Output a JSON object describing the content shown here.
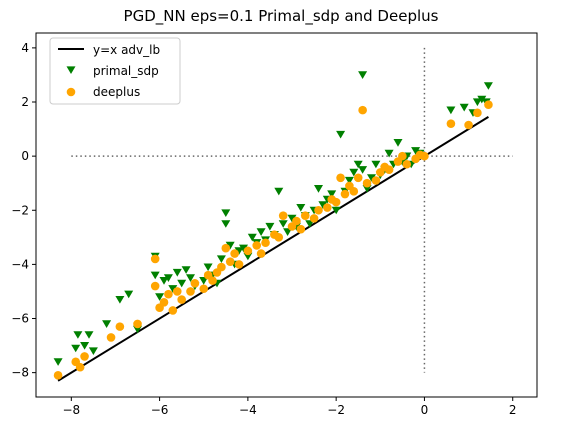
{
  "chart_data": {
    "type": "scatter",
    "title": "PGD_NN eps=0.1 Primal_sdp and Deeplus",
    "xlabel": "",
    "ylabel": "",
    "xlim": [
      -8.8,
      2.55
    ],
    "ylim": [
      -8.9,
      4.55
    ],
    "xticks": [
      -8,
      -6,
      -4,
      -2,
      0,
      2
    ],
    "yticks": [
      -8,
      -6,
      -4,
      -2,
      0,
      2,
      4
    ],
    "xtick_labels": [
      "−8",
      "−6",
      "−4",
      "−2",
      "0",
      "2"
    ],
    "ytick_labels": [
      "−8",
      "−6",
      "−4",
      "−2",
      "0",
      "2",
      "4"
    ],
    "legend_position": "top-left",
    "reference_line": {
      "name": "y=x adv_lb",
      "color": "#000000",
      "x": [
        -8.3,
        1.45
      ],
      "y": [
        -8.3,
        1.45
      ]
    },
    "guides": {
      "vertical": {
        "x": 0,
        "y_from": -8.0,
        "y_to": 4.0
      },
      "horizontal": {
        "y": 0,
        "x_from": -8.0,
        "x_to": 2.0
      },
      "style": "dotted",
      "color": "#666666"
    },
    "series": [
      {
        "name": "primal_sdp",
        "marker": "triangle-down",
        "color": "#008000",
        "points": [
          [
            -8.3,
            -7.6
          ],
          [
            -7.9,
            -7.1
          ],
          [
            -7.85,
            -6.6
          ],
          [
            -7.7,
            -7.0
          ],
          [
            -7.6,
            -6.6
          ],
          [
            -7.5,
            -7.2
          ],
          [
            -7.2,
            -6.2
          ],
          [
            -6.9,
            -5.3
          ],
          [
            -6.7,
            -5.1
          ],
          [
            -6.5,
            -6.4
          ],
          [
            -6.1,
            -3.7
          ],
          [
            -6.1,
            -4.4
          ],
          [
            -6.0,
            -5.2
          ],
          [
            -5.9,
            -4.6
          ],
          [
            -5.8,
            -4.5
          ],
          [
            -5.7,
            -4.9
          ],
          [
            -5.6,
            -4.3
          ],
          [
            -5.5,
            -4.7
          ],
          [
            -5.4,
            -4.2
          ],
          [
            -5.3,
            -4.5
          ],
          [
            -5.2,
            -4.8
          ],
          [
            -5.0,
            -4.6
          ],
          [
            -4.9,
            -4.1
          ],
          [
            -4.8,
            -4.4
          ],
          [
            -4.7,
            -4.7
          ],
          [
            -4.6,
            -3.8
          ],
          [
            -4.5,
            -2.1
          ],
          [
            -4.5,
            -2.5
          ],
          [
            -4.4,
            -3.3
          ],
          [
            -4.3,
            -4.0
          ],
          [
            -4.2,
            -3.5
          ],
          [
            -4.1,
            -3.4
          ],
          [
            -4.0,
            -3.7
          ],
          [
            -3.9,
            -3.0
          ],
          [
            -3.8,
            -3.2
          ],
          [
            -3.7,
            -2.8
          ],
          [
            -3.6,
            -3.1
          ],
          [
            -3.5,
            -2.6
          ],
          [
            -3.4,
            -2.9
          ],
          [
            -3.3,
            -1.3
          ],
          [
            -3.2,
            -2.5
          ],
          [
            -3.1,
            -2.8
          ],
          [
            -3.0,
            -2.3
          ],
          [
            -2.9,
            -2.6
          ],
          [
            -2.8,
            -1.9
          ],
          [
            -2.7,
            -2.2
          ],
          [
            -2.6,
            -2.5
          ],
          [
            -2.5,
            -2.0
          ],
          [
            -2.4,
            -1.2
          ],
          [
            -2.3,
            -1.8
          ],
          [
            -2.2,
            -1.6
          ],
          [
            -2.1,
            -1.4
          ],
          [
            -2.0,
            -2.0
          ],
          [
            -1.9,
            0.8
          ],
          [
            -1.8,
            -1.3
          ],
          [
            -1.7,
            -0.9
          ],
          [
            -1.6,
            -0.6
          ],
          [
            -1.5,
            -0.3
          ],
          [
            -1.4,
            -0.5
          ],
          [
            -1.4,
            3.0
          ],
          [
            -1.3,
            -1.2
          ],
          [
            -1.2,
            -0.8
          ],
          [
            -1.1,
            -0.3
          ],
          [
            -1.0,
            -0.7
          ],
          [
            -0.9,
            -0.5
          ],
          [
            -0.8,
            0.1
          ],
          [
            -0.7,
            -0.3
          ],
          [
            -0.6,
            0.5
          ],
          [
            -0.5,
            -0.2
          ],
          [
            -0.4,
            0.0
          ],
          [
            -0.3,
            -0.3
          ],
          [
            -0.2,
            0.2
          ],
          [
            -0.1,
            0.1
          ],
          [
            0.6,
            1.7
          ],
          [
            0.9,
            1.8
          ],
          [
            1.1,
            1.6
          ],
          [
            1.2,
            2.0
          ],
          [
            1.3,
            2.1
          ],
          [
            1.4,
            2.0
          ],
          [
            1.45,
            2.6
          ]
        ]
      },
      {
        "name": "deeplus",
        "marker": "circle",
        "color": "#FFA500",
        "points": [
          [
            -8.3,
            -8.1
          ],
          [
            -7.9,
            -7.6
          ],
          [
            -7.8,
            -7.8
          ],
          [
            -7.7,
            -7.4
          ],
          [
            -7.1,
            -6.7
          ],
          [
            -6.9,
            -6.3
          ],
          [
            -6.5,
            -6.2
          ],
          [
            -6.1,
            -4.8
          ],
          [
            -6.1,
            -3.8
          ],
          [
            -6.0,
            -5.6
          ],
          [
            -5.9,
            -5.4
          ],
          [
            -5.8,
            -5.1
          ],
          [
            -5.7,
            -5.7
          ],
          [
            -5.6,
            -5.0
          ],
          [
            -5.5,
            -5.3
          ],
          [
            -5.3,
            -5.0
          ],
          [
            -5.2,
            -4.7
          ],
          [
            -5.0,
            -4.9
          ],
          [
            -4.9,
            -4.4
          ],
          [
            -4.8,
            -4.6
          ],
          [
            -4.7,
            -4.3
          ],
          [
            -4.6,
            -4.1
          ],
          [
            -4.5,
            -3.4
          ],
          [
            -4.4,
            -3.9
          ],
          [
            -4.3,
            -3.6
          ],
          [
            -4.2,
            -4.0
          ],
          [
            -4.0,
            -3.5
          ],
          [
            -3.8,
            -3.3
          ],
          [
            -3.7,
            -3.6
          ],
          [
            -3.6,
            -3.2
          ],
          [
            -3.4,
            -2.9
          ],
          [
            -3.3,
            -3.0
          ],
          [
            -3.2,
            -2.2
          ],
          [
            -3.0,
            -2.6
          ],
          [
            -2.9,
            -2.4
          ],
          [
            -2.8,
            -2.7
          ],
          [
            -2.7,
            -2.2
          ],
          [
            -2.5,
            -2.3
          ],
          [
            -2.4,
            -2.0
          ],
          [
            -2.2,
            -1.9
          ],
          [
            -2.1,
            -1.6
          ],
          [
            -2.0,
            -1.7
          ],
          [
            -1.9,
            -0.8
          ],
          [
            -1.8,
            -1.4
          ],
          [
            -1.7,
            -1.1
          ],
          [
            -1.6,
            -1.3
          ],
          [
            -1.5,
            -0.8
          ],
          [
            -1.4,
            1.7
          ],
          [
            -1.3,
            -1.0
          ],
          [
            -1.1,
            -0.9
          ],
          [
            -1.0,
            -0.6
          ],
          [
            -0.9,
            -0.4
          ],
          [
            -0.8,
            -0.5
          ],
          [
            -0.6,
            -0.2
          ],
          [
            -0.5,
            0.0
          ],
          [
            -0.4,
            -0.3
          ],
          [
            -0.2,
            -0.1
          ],
          [
            -0.1,
            0.05
          ],
          [
            0.0,
            0.0
          ],
          [
            0.6,
            1.2
          ],
          [
            1.0,
            1.15
          ],
          [
            1.2,
            1.6
          ],
          [
            1.45,
            1.9
          ]
        ]
      }
    ]
  }
}
